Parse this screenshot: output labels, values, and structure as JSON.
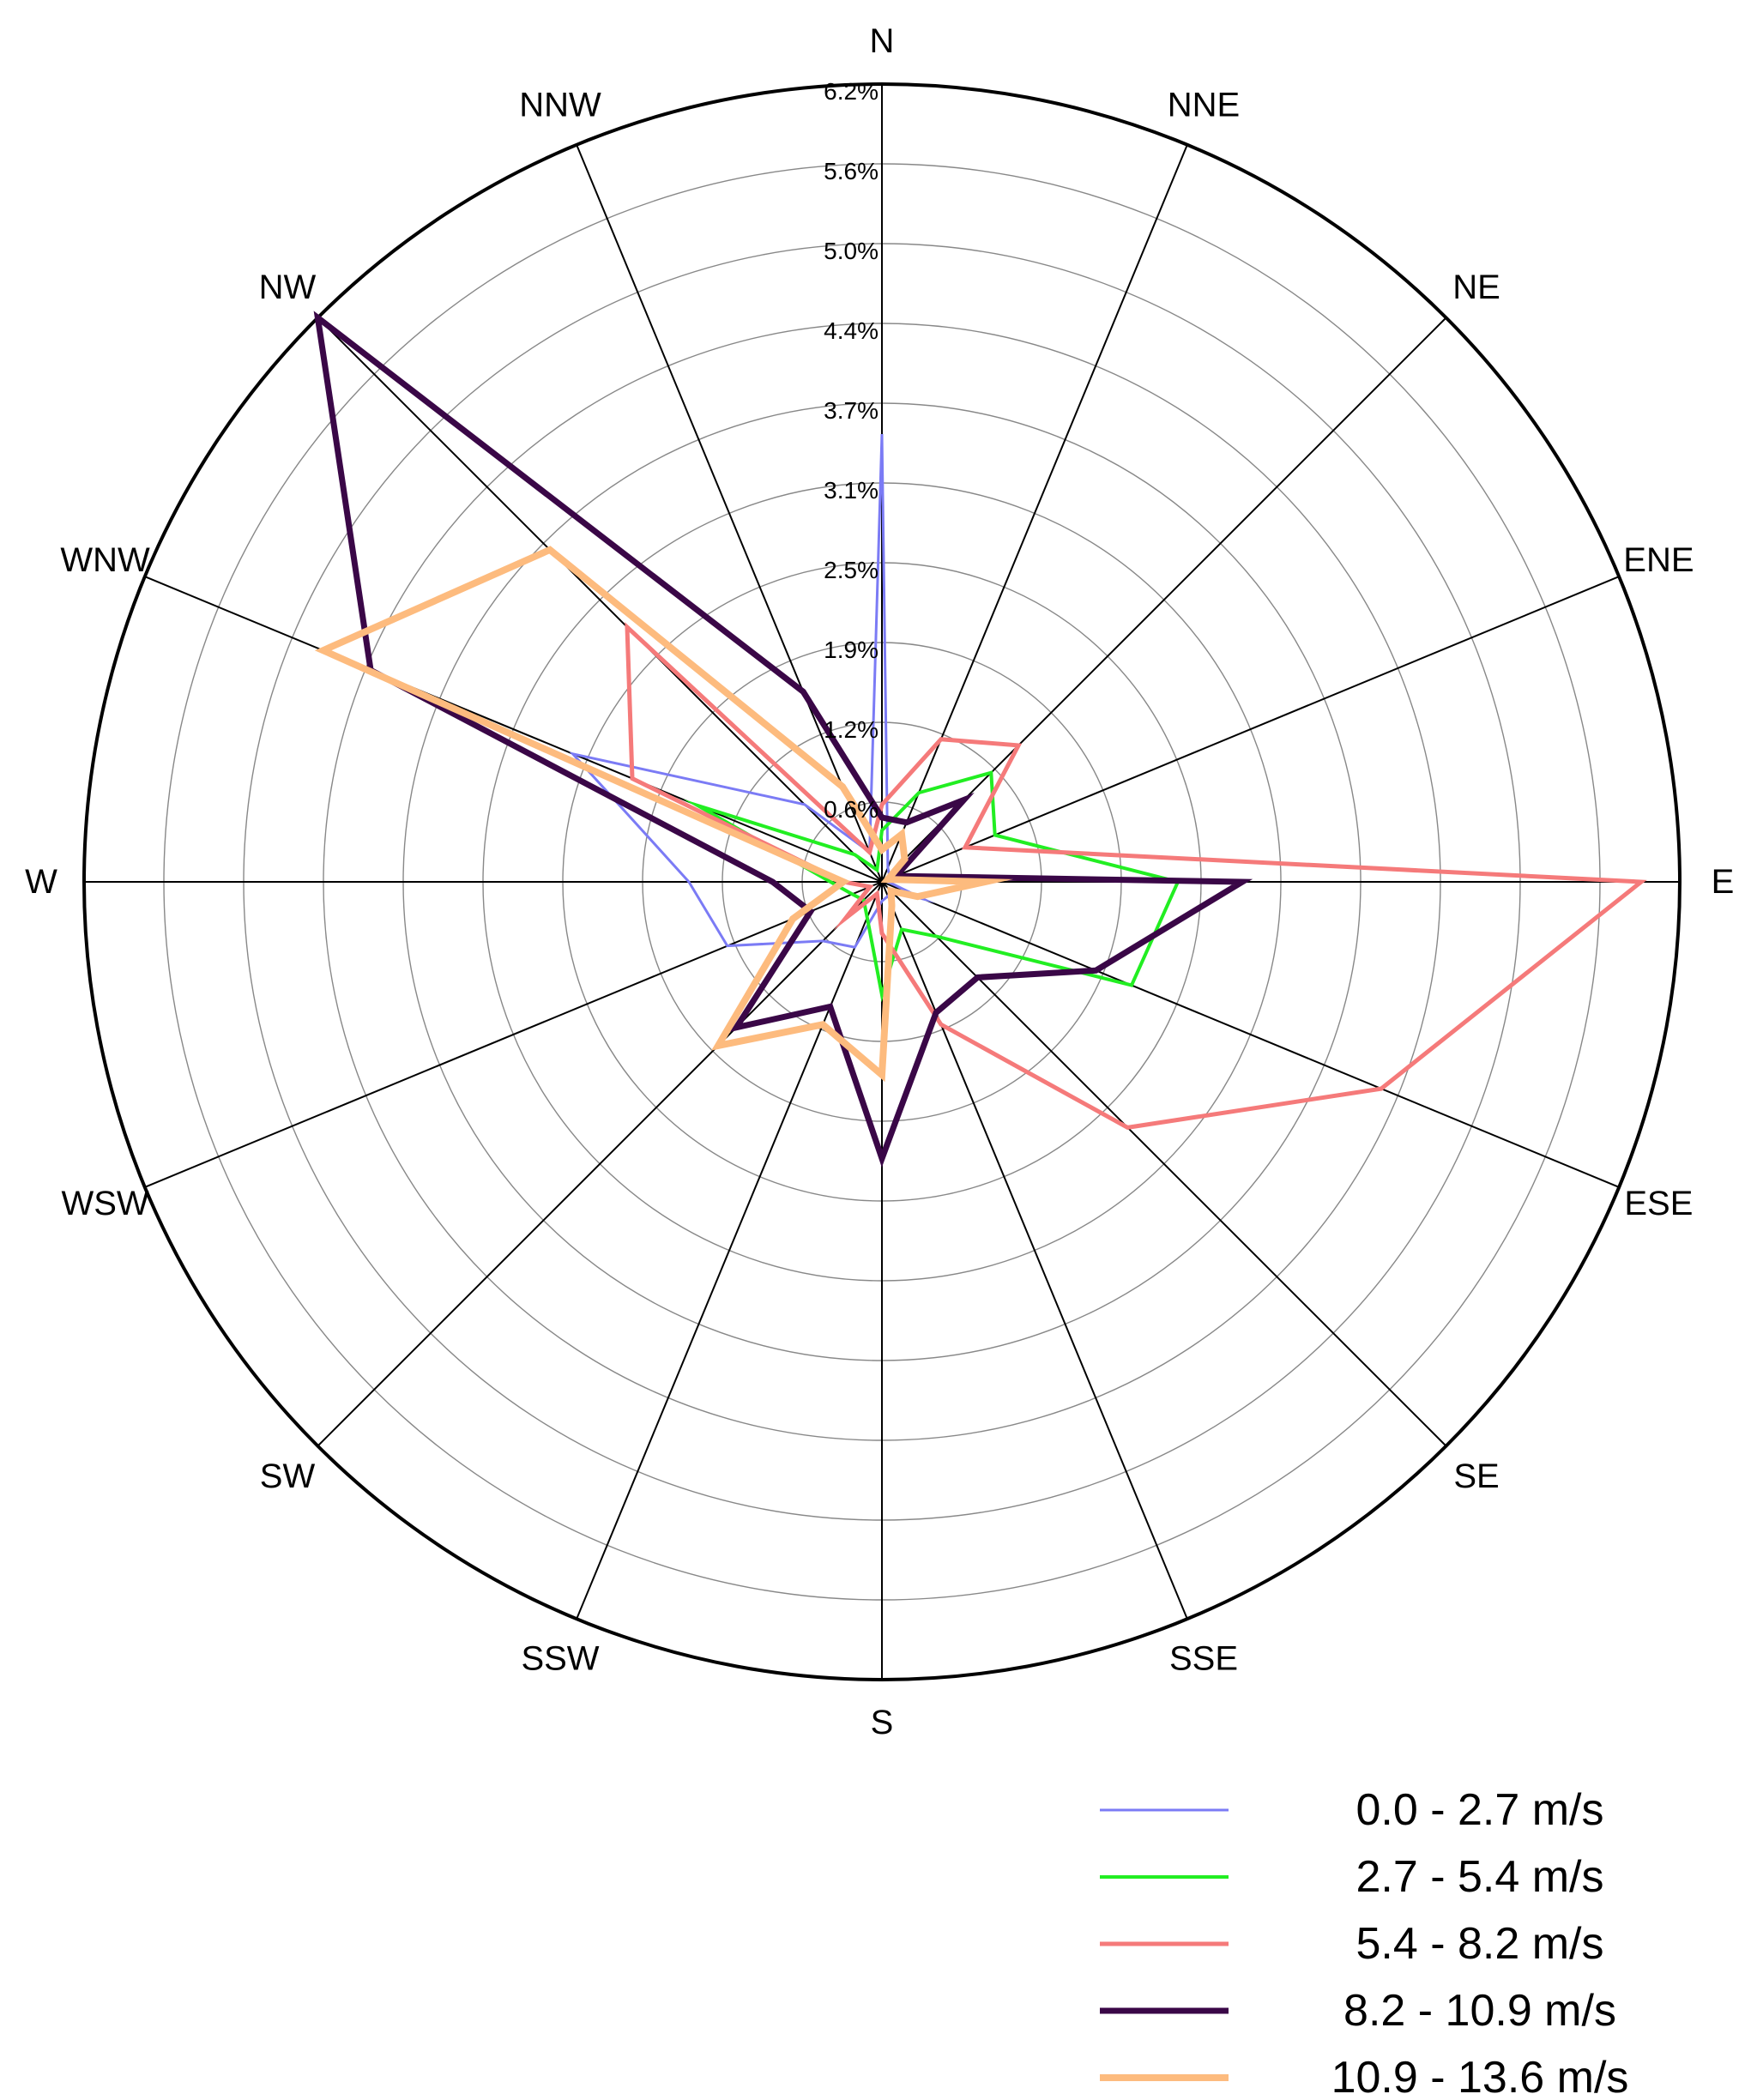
{
  "chart_data": {
    "type": "radar",
    "title": "",
    "directions": [
      "N",
      "NNE",
      "NE",
      "ENE",
      "E",
      "ESE",
      "SE",
      "SSE",
      "S",
      "SSW",
      "SW",
      "WSW",
      "W",
      "WNW",
      "NW",
      "NNW"
    ],
    "radial_ticks": [
      "0.6%",
      "1.2%",
      "1.9%",
      "2.5%",
      "3.1%",
      "3.7%",
      "4.4%",
      "5.0%",
      "5.6%",
      "6.2%"
    ],
    "rmax": 6.2,
    "series": [
      {
        "name": "0.0 - 2.7 m/s",
        "color": "#7b7bf5",
        "width": 3,
        "values": [
          3.48,
          0.12,
          0.08,
          0.06,
          0.05,
          0.35,
          0.1,
          0.12,
          0.15,
          0.55,
          0.65,
          1.3,
          1.5,
          2.6,
          0.85,
          0.25
        ]
      },
      {
        "name": "2.7 - 5.4 m/s",
        "color": "#22ee22",
        "width": 4,
        "values": [
          0.4,
          0.75,
          1.2,
          0.95,
          2.3,
          2.1,
          0.6,
          0.4,
          0.88,
          0.3,
          0.2,
          0.25,
          0.4,
          1.55,
          0.3,
          0.1
        ]
      },
      {
        "name": "5.4 - 8.2 m/s",
        "color": "#f57a7a",
        "width": 5,
        "values": [
          0.6,
          1.2,
          1.5,
          0.7,
          5.9,
          4.2,
          2.7,
          1.2,
          0.4,
          0.1,
          0.4,
          0.1,
          0.3,
          2.1,
          2.8,
          0.25
        ]
      },
      {
        "name": "8.2 - 10.9 m/s",
        "color": "#3a0747",
        "width": 7,
        "values": [
          0.5,
          0.5,
          0.9,
          0.12,
          2.8,
          1.8,
          1.05,
          1.1,
          2.15,
          1.05,
          1.6,
          0.6,
          0.85,
          4.3,
          6.2,
          1.6
        ]
      },
      {
        "name": "10.9 - 13.6 m/s",
        "color": "#fdbb7e",
        "width": 8,
        "values": [
          0.25,
          0.4,
          0.25,
          0.05,
          0.8,
          0.3,
          0.1,
          0.2,
          1.5,
          1.2,
          1.8,
          0.75,
          0.3,
          4.7,
          3.65,
          0.8
        ]
      }
    ]
  }
}
